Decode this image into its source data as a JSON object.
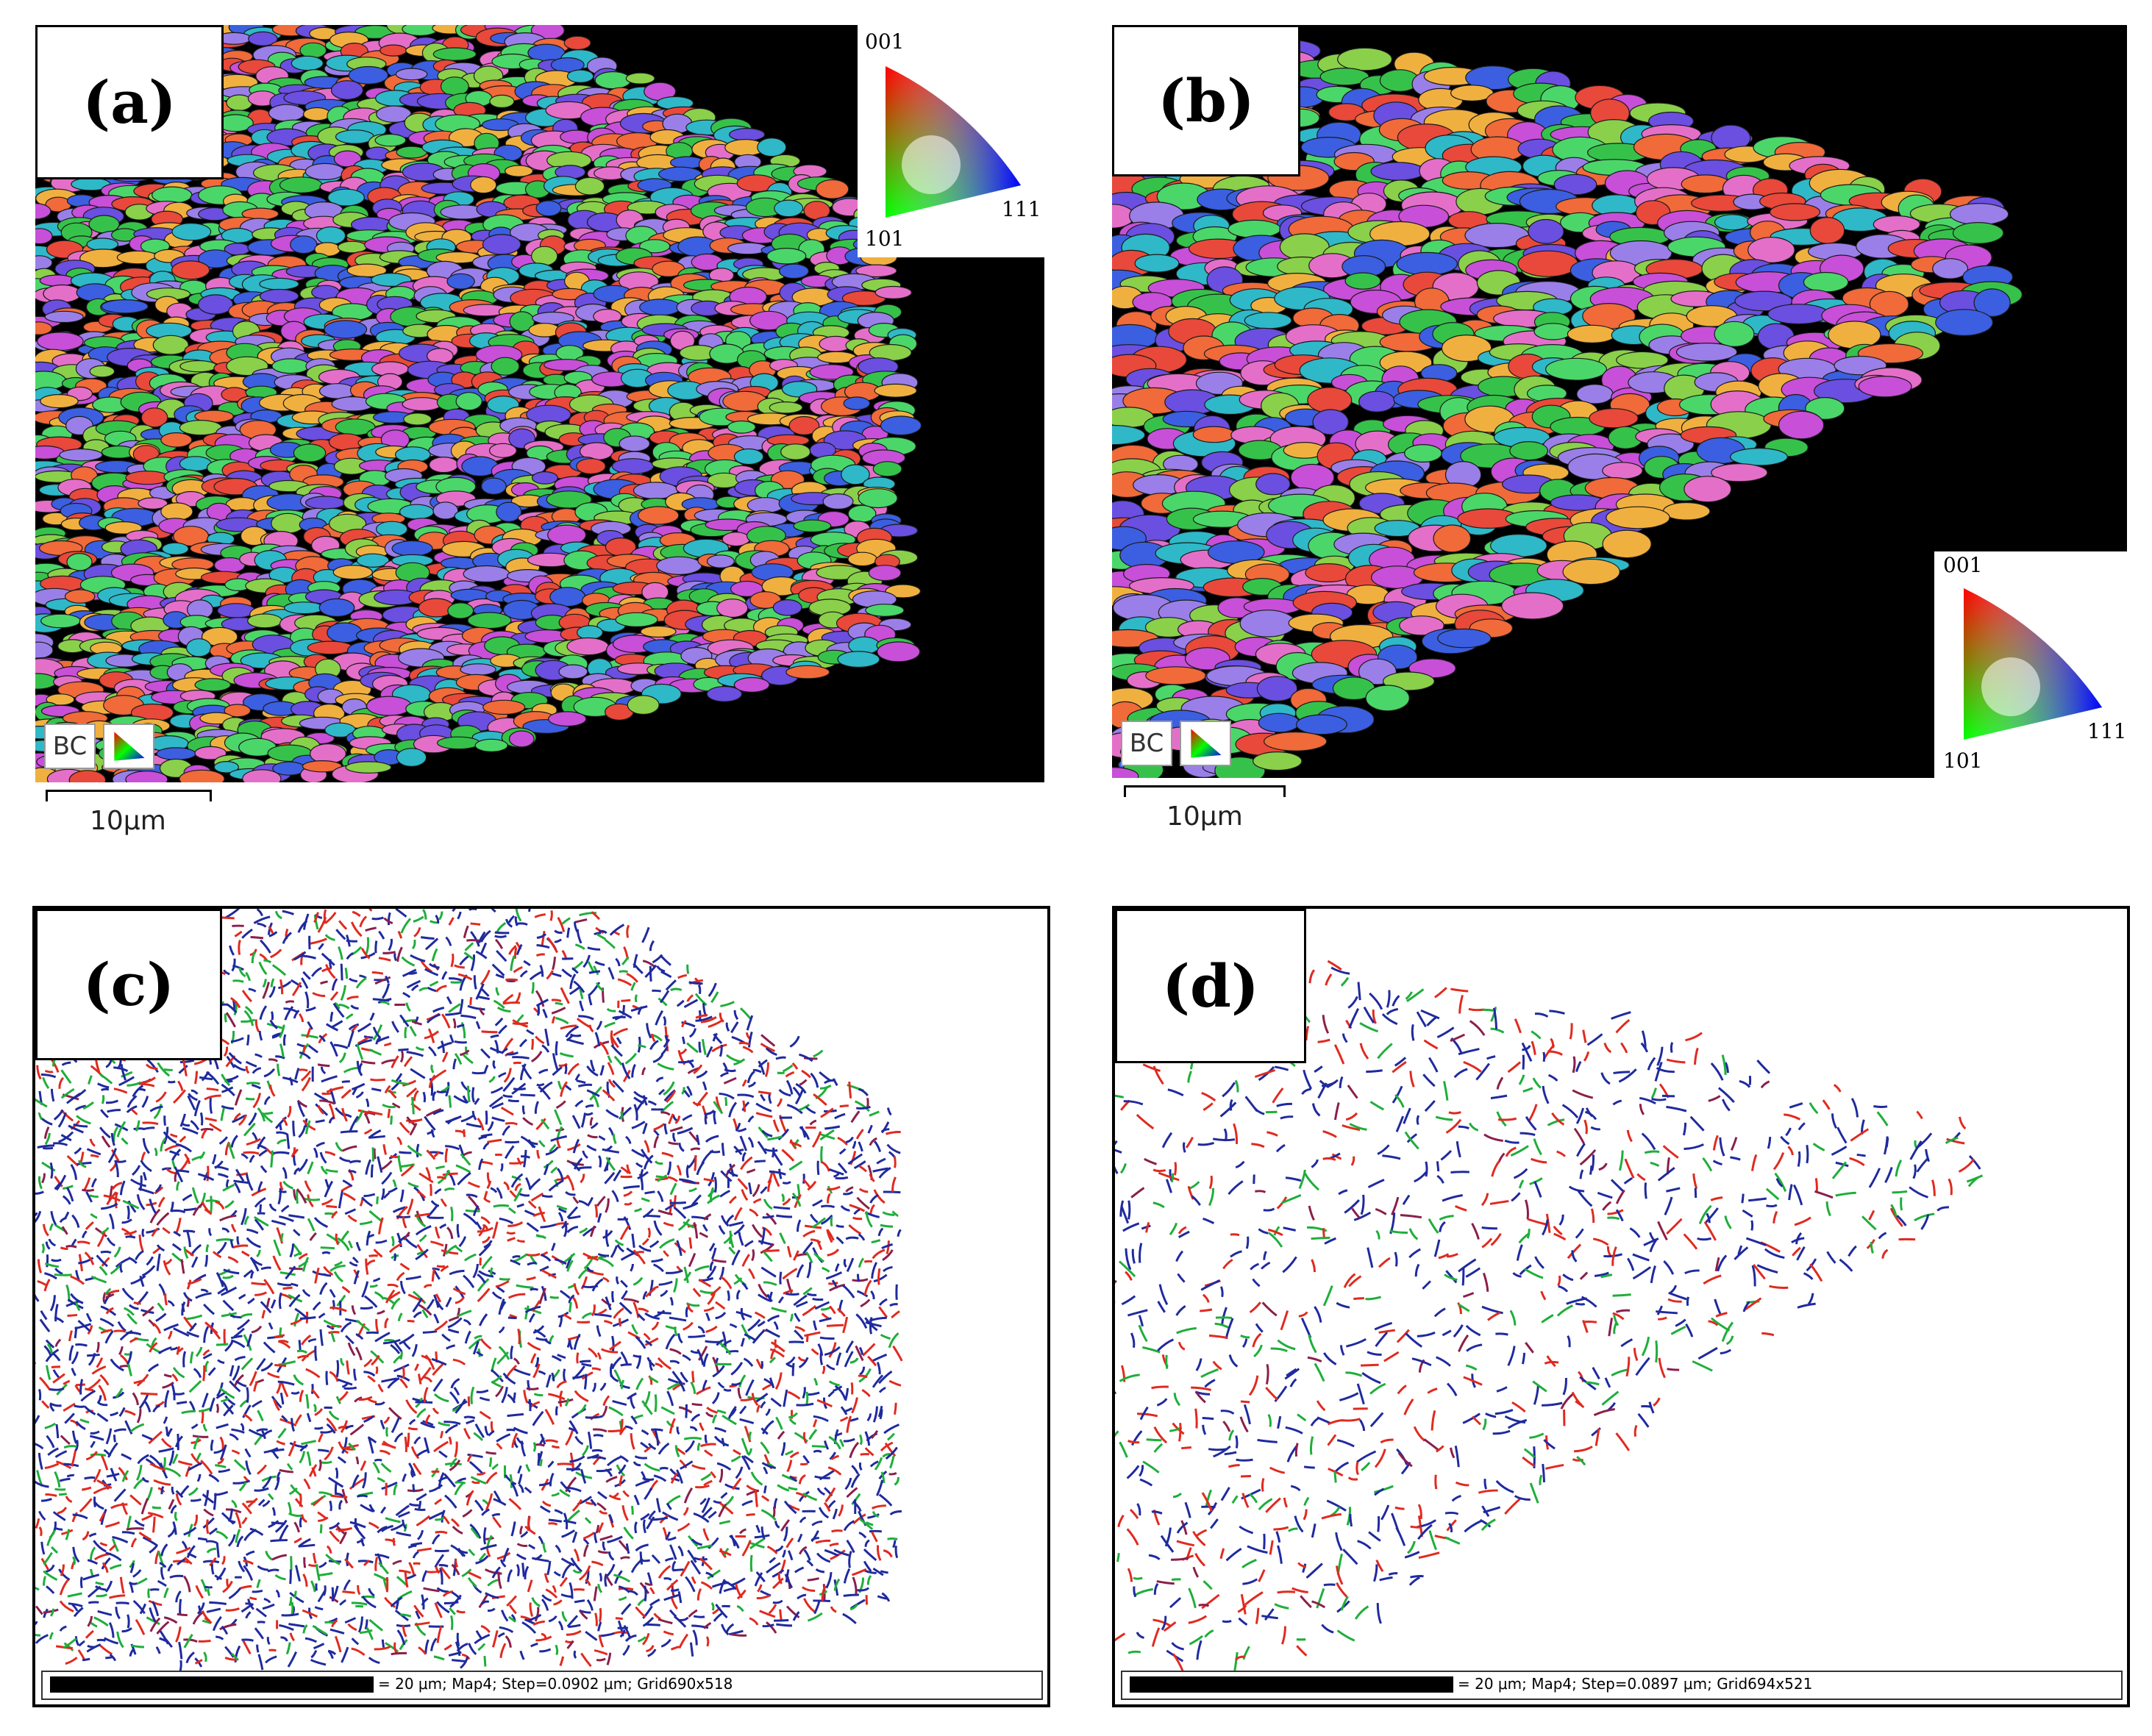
{
  "panels": [
    {
      "label": "(a)",
      "bc": "BC",
      "scale": "10μm",
      "ipf": {
        "top": "001",
        "left": "101",
        "right": "111"
      }
    },
    {
      "label": "(b)",
      "bc": "BC",
      "scale": "10μm",
      "ipf": {
        "top": "001",
        "left": "101",
        "right": "111"
      }
    },
    {
      "label": "(c)",
      "footer": "= 20 μm; Map4; Step=0.0902 μm; Grid690x518"
    },
    {
      "label": "(d)",
      "footer": "= 20 μm; Map4; Step=0.0897 μm; Grid694x521"
    }
  ],
  "colors": {
    "grain_palette": [
      "#e8493a",
      "#f06a3a",
      "#36c24a",
      "#4bd66a",
      "#3b5fe0",
      "#6a4fe0",
      "#c84fd8",
      "#e46fc8",
      "#2fb8c8",
      "#8ad04a",
      "#f0b040",
      "#9a7fe8"
    ],
    "boundary_palette": [
      "#1f2a9e",
      "#e02a1f",
      "#1fae3a",
      "#8a1f4a"
    ]
  }
}
